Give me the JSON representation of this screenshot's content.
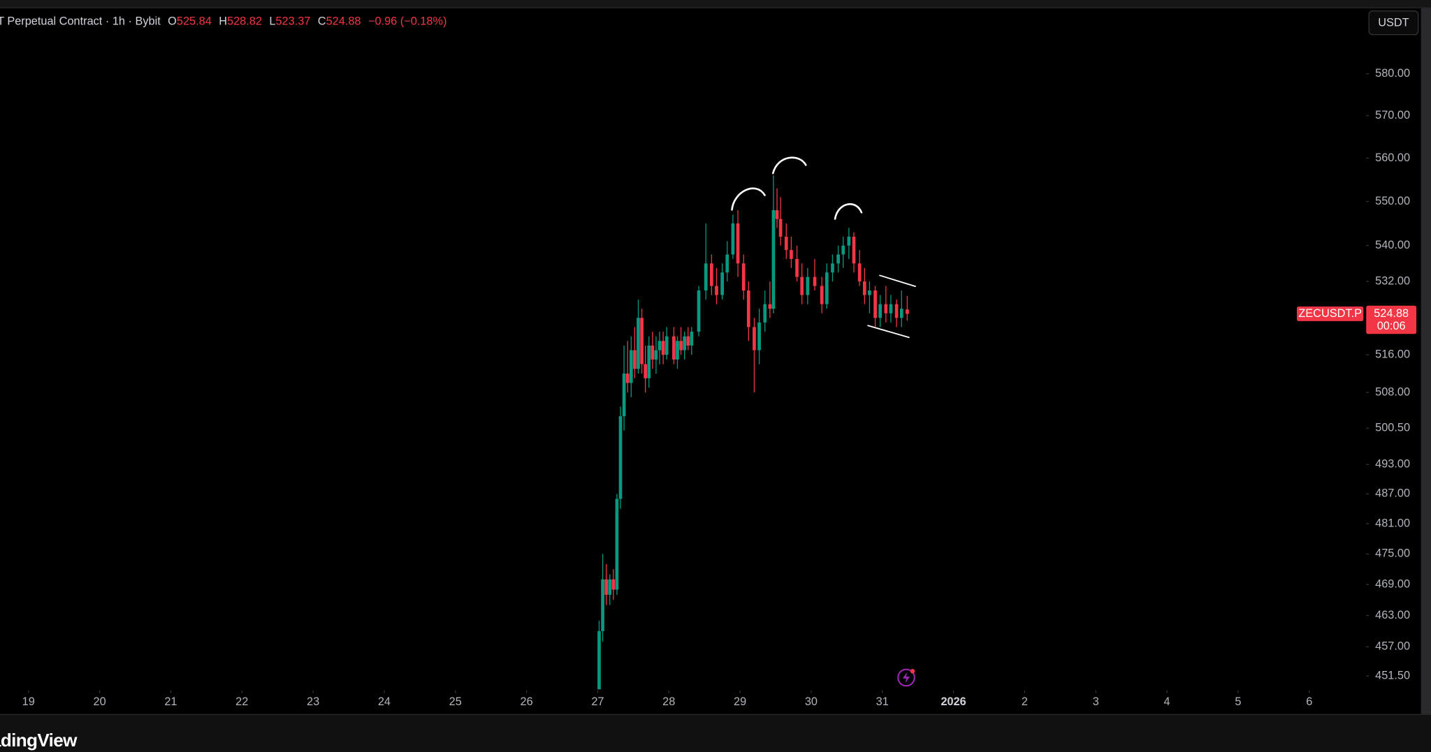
{
  "chart_data": {
    "type": "candlestick",
    "symbol_text": "T Perpetual Contract · 1h · Bybit",
    "legend": [
      {
        "label": "O",
        "value": 525.84
      },
      {
        "label": "H",
        "value": 528.82
      },
      {
        "label": "L",
        "value": 523.37
      },
      {
        "label": "C",
        "value": 524.88
      }
    ],
    "change_text": "−0.96 (−0.18%)",
    "currency": "USDT",
    "symbol_label": "ZECUSDT.P",
    "last_price": 524.88,
    "countdown": "00:06",
    "logo": "adingView",
    "log_scale": true,
    "up_color": "#089981",
    "down_color": "#f23645",
    "xlim": [
      18.6,
      37.8
    ],
    "ylim": [
      448.8,
      595.8
    ],
    "xticks": [
      19,
      20,
      21,
      22,
      23,
      24,
      25,
      26,
      27,
      28,
      29,
      30,
      31,
      {
        "value": 32,
        "label": "2026"
      },
      {
        "value": 33,
        "label": "2"
      },
      {
        "value": 34,
        "label": "3"
      },
      {
        "value": 35,
        "label": "4"
      },
      {
        "value": 36,
        "label": "5"
      },
      {
        "value": 37,
        "label": "6"
      }
    ],
    "yticks": [
      {
        "value": 580,
        "label": "580.00"
      },
      {
        "value": 570,
        "label": "570.00"
      },
      {
        "value": 560,
        "label": "560.00"
      },
      {
        "value": 550,
        "label": "550.00"
      },
      {
        "value": 540,
        "label": "540.00"
      },
      {
        "value": 532,
        "label": "532.00"
      },
      {
        "value": 516,
        "label": "516.00"
      },
      {
        "value": 508,
        "label": "508.00"
      },
      {
        "value": 500.5,
        "label": "500.50"
      },
      {
        "value": 493,
        "label": "493.00"
      },
      {
        "value": 487,
        "label": "487.00"
      },
      {
        "value": 481,
        "label": "481.00"
      },
      {
        "value": 475,
        "label": "475.00"
      },
      {
        "value": 469,
        "label": "469.00"
      },
      {
        "value": 463,
        "label": "463.00"
      },
      {
        "value": 457,
        "label": "457.00"
      },
      {
        "value": 451.5,
        "label": "451.50"
      }
    ],
    "x": [
      27.02,
      27.07,
      27.12,
      27.17,
      27.22,
      27.27,
      27.32,
      27.37,
      27.42,
      27.47,
      27.52,
      27.57,
      27.62,
      27.67,
      27.72,
      27.77,
      27.82,
      27.87,
      27.92,
      27.97,
      28.07,
      28.12,
      28.17,
      28.22,
      28.27,
      28.32,
      28.42,
      28.52,
      28.6,
      28.67,
      28.75,
      28.82,
      28.9,
      28.97,
      29.05,
      29.12,
      29.2,
      29.27,
      29.35,
      29.42,
      29.47,
      29.52,
      29.57,
      29.65,
      29.72,
      29.8,
      29.87,
      29.95,
      30.05,
      30.15,
      30.22,
      30.3,
      30.38,
      30.45,
      30.53,
      30.6,
      30.68,
      30.75,
      30.82,
      30.9,
      30.97,
      31.05,
      31.12,
      31.2,
      31.27,
      31.35
    ],
    "open": [
      449,
      460,
      470,
      467,
      470,
      468,
      486,
      503,
      512,
      510,
      517,
      513,
      524,
      514,
      511,
      518,
      515,
      517,
      519,
      516,
      520,
      515,
      519,
      517,
      520,
      518,
      521,
      530,
      536,
      531,
      529,
      534,
      538,
      545,
      536,
      530,
      522,
      517,
      523,
      527,
      526,
      548,
      546,
      542,
      539,
      537,
      533,
      529,
      533,
      531,
      527,
      534,
      536,
      538,
      540,
      542,
      536,
      532,
      529,
      530,
      524,
      527,
      525,
      527,
      524,
      525.84
    ],
    "high": [
      462,
      475,
      473,
      471,
      472,
      487,
      505,
      518,
      519,
      520,
      522,
      528,
      526,
      518,
      520,
      521,
      520,
      521,
      521,
      522,
      522,
      520,
      522,
      521,
      522,
      522,
      531,
      545,
      538,
      535,
      536,
      541,
      547,
      548,
      538,
      532,
      524,
      526,
      530,
      532,
      556,
      553,
      551,
      545,
      542,
      540,
      536,
      535,
      537,
      533,
      536,
      538,
      540,
      542,
      544,
      543,
      539,
      535,
      532,
      531,
      529,
      531,
      529,
      528,
      530,
      528.82
    ],
    "low": [
      449,
      458,
      465,
      465,
      466,
      467,
      484,
      500,
      508,
      507,
      511,
      512,
      512,
      508,
      509,
      513,
      512,
      514,
      514,
      515,
      514,
      513,
      516,
      515,
      517,
      516,
      520,
      528,
      529,
      527,
      528,
      532,
      537,
      533,
      528,
      519,
      508,
      514,
      521,
      524,
      525,
      544,
      540,
      537,
      535,
      532,
      527,
      527,
      530,
      525,
      526,
      532,
      534,
      535,
      537,
      534,
      531,
      527,
      525,
      522,
      522,
      523,
      523,
      522,
      522,
      523.37
    ],
    "close": [
      460,
      470,
      467,
      470,
      468,
      486,
      503,
      512,
      510,
      517,
      513,
      524,
      514,
      511,
      518,
      515,
      517,
      519,
      516,
      520,
      515,
      519,
      517,
      520,
      518,
      521,
      530,
      536,
      531,
      529,
      534,
      538,
      545,
      536,
      530,
      522,
      517,
      523,
      527,
      526,
      548,
      546,
      542,
      539,
      537,
      533,
      529,
      533,
      531,
      527,
      534,
      536,
      538,
      540,
      542,
      536,
      532,
      529,
      530,
      524,
      527,
      525,
      527,
      524,
      526,
      524.88
    ]
  }
}
